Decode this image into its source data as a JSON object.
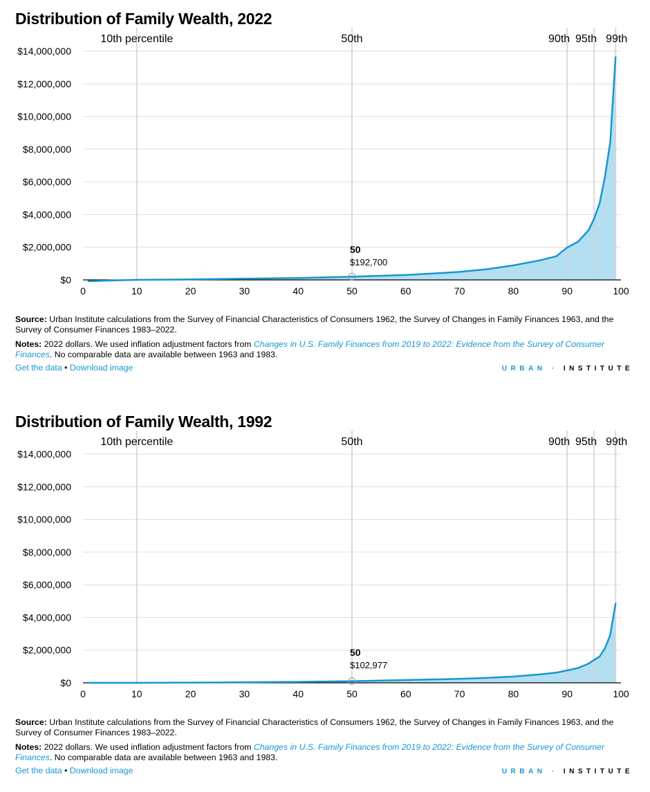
{
  "colors": {
    "line": "#1696d2",
    "area": "#b3dff1",
    "grid": "#dedede",
    "pct_line": "#d2d2d2"
  },
  "footer": {
    "source_label": "Source:",
    "source_text": "Urban Institute calculations from the Survey of Financial Characteristics of Consumers 1962, the Survey of Changes in Family Finances 1963, and the Survey of Consumer Finances 1983–2022.",
    "notes_label": "Notes:",
    "notes_pre": "2022 dollars. We used inflation adjustment factors from ",
    "notes_link": "Changes in U.S. Family Finances from 2019 to 2022: Evidence from the Survey of Consumer Finances",
    "notes_post": ". No comparable data are available between 1963 and 1983.",
    "get_data": "Get the data",
    "bullet": "•",
    "download": "Download image",
    "logo_urban": "URBAN",
    "logo_sep": "·",
    "logo_institute": "INSTITUTE"
  },
  "chart_data": [
    {
      "type": "area",
      "title": "Distribution of Family Wealth, 2022",
      "xlim": [
        0,
        100
      ],
      "ylim": [
        0,
        14000000
      ],
      "xticks": [
        "0",
        "10",
        "20",
        "30",
        "40",
        "50",
        "60",
        "70",
        "80",
        "90",
        "100"
      ],
      "yticks": [
        "$0",
        "$2,000,000",
        "$4,000,000",
        "$6,000,000",
        "$8,000,000",
        "$10,000,000",
        "$12,000,000",
        "$14,000,000"
      ],
      "grid": true,
      "percentile_markers": [
        {
          "x": 10,
          "label": "10th percentile"
        },
        {
          "x": 50,
          "label": "50th"
        },
        {
          "x": 90,
          "label": "90th"
        },
        {
          "x": 95,
          "label": "95th"
        },
        {
          "x": 99,
          "label": "99th"
        }
      ],
      "annotation": {
        "x": 50,
        "label": "50",
        "value": "$192,700"
      },
      "x": [
        1,
        10,
        20,
        30,
        40,
        50,
        60,
        65,
        70,
        75,
        80,
        85,
        88,
        90,
        92,
        94,
        95,
        96,
        97,
        98,
        99
      ],
      "y": [
        -80000,
        5000,
        30000,
        70000,
        120000,
        192700,
        300000,
        390000,
        490000,
        650000,
        890000,
        1200000,
        1450000,
        1980000,
        2330000,
        3050000,
        3740000,
        4650000,
        6270000,
        8390000,
        13630000
      ]
    },
    {
      "type": "area",
      "title": "Distribution of Family Wealth, 1992",
      "xlim": [
        0,
        100
      ],
      "ylim": [
        0,
        14000000
      ],
      "xticks": [
        "0",
        "10",
        "20",
        "30",
        "40",
        "50",
        "60",
        "70",
        "80",
        "90",
        "100"
      ],
      "yticks": [
        "$0",
        "$2,000,000",
        "$4,000,000",
        "$6,000,000",
        "$8,000,000",
        "$10,000,000",
        "$12,000,000",
        "$14,000,000"
      ],
      "grid": true,
      "percentile_markers": [
        {
          "x": 10,
          "label": "10th percentile"
        },
        {
          "x": 50,
          "label": "50th"
        },
        {
          "x": 90,
          "label": "90th"
        },
        {
          "x": 95,
          "label": "95th"
        },
        {
          "x": 99,
          "label": "99th"
        }
      ],
      "annotation": {
        "x": 50,
        "label": "50",
        "value": "$102,977"
      },
      "x": [
        1,
        10,
        20,
        30,
        40,
        50,
        60,
        70,
        75,
        80,
        85,
        88,
        90,
        92,
        94,
        95,
        96,
        97,
        98,
        99
      ],
      "y": [
        0,
        2000,
        12000,
        30000,
        60000,
        102977,
        170000,
        240000,
        300000,
        380000,
        520000,
        620000,
        760000,
        900000,
        1180000,
        1400000,
        1600000,
        2100000,
        2920000,
        4850000
      ]
    }
  ]
}
